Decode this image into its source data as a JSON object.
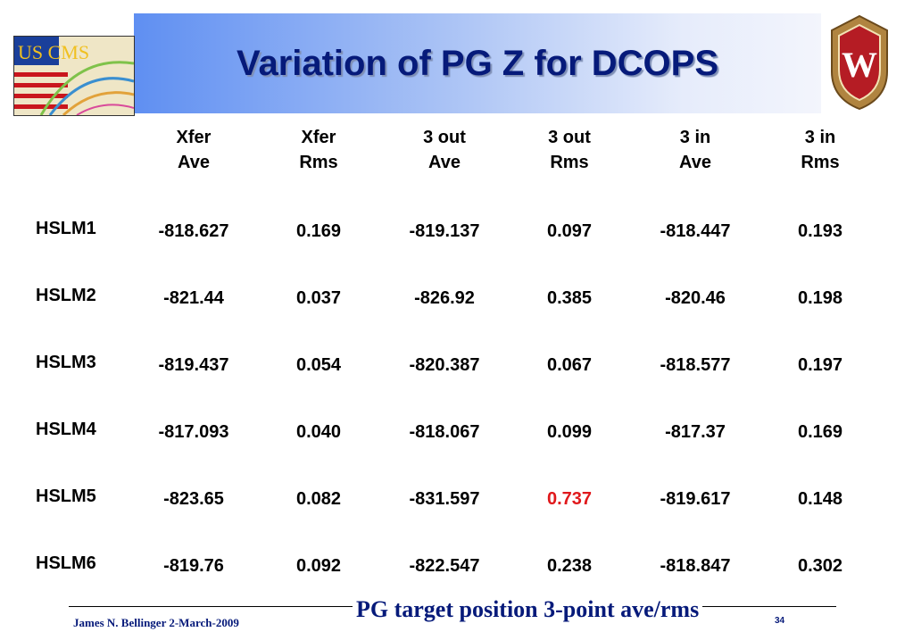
{
  "slide": {
    "title": "Variation of PG Z for DCOPS",
    "left_logo_text": "US CMS",
    "right_logo_letter": "W"
  },
  "table": {
    "columns": [
      {
        "line1": "Xfer",
        "line2": "Ave"
      },
      {
        "line1": "Xfer",
        "line2": "Rms"
      },
      {
        "line1": "3 out",
        "line2": "Ave"
      },
      {
        "line1": "3 out",
        "line2": "Rms"
      },
      {
        "line1": "3 in",
        "line2": "Ave"
      },
      {
        "line1": "3 in",
        "line2": "Rms"
      }
    ],
    "rows": [
      {
        "label": "HSLM1",
        "values": [
          "-818.627",
          "0.169",
          "-819.137",
          "0.097",
          "-818.447",
          "0.193"
        ]
      },
      {
        "label": "HSLM2",
        "values": [
          "-821.44",
          "0.037",
          "-826.92",
          "0.385",
          "-820.46",
          "0.198"
        ]
      },
      {
        "label": "HSLM3",
        "values": [
          "-819.437",
          "0.054",
          "-820.387",
          "0.067",
          "-818.577",
          "0.197"
        ]
      },
      {
        "label": "HSLM4",
        "values": [
          "-817.093",
          "0.040",
          "-818.067",
          "0.099",
          "-817.37",
          "0.169"
        ]
      },
      {
        "label": "HSLM5",
        "values": [
          "-823.65",
          "0.082",
          "-831.597",
          "0.737",
          "-819.617",
          "0.148"
        ]
      },
      {
        "label": "HSLM6",
        "values": [
          "-819.76",
          "0.092",
          "-822.547",
          "0.238",
          "-818.847",
          "0.302"
        ]
      }
    ],
    "highlight_color": "#e0181b"
  },
  "footer": {
    "author": "James N. Bellinger 2-March-2009",
    "caption": "PG target position 3-point ave/rms",
    "page": "34"
  }
}
